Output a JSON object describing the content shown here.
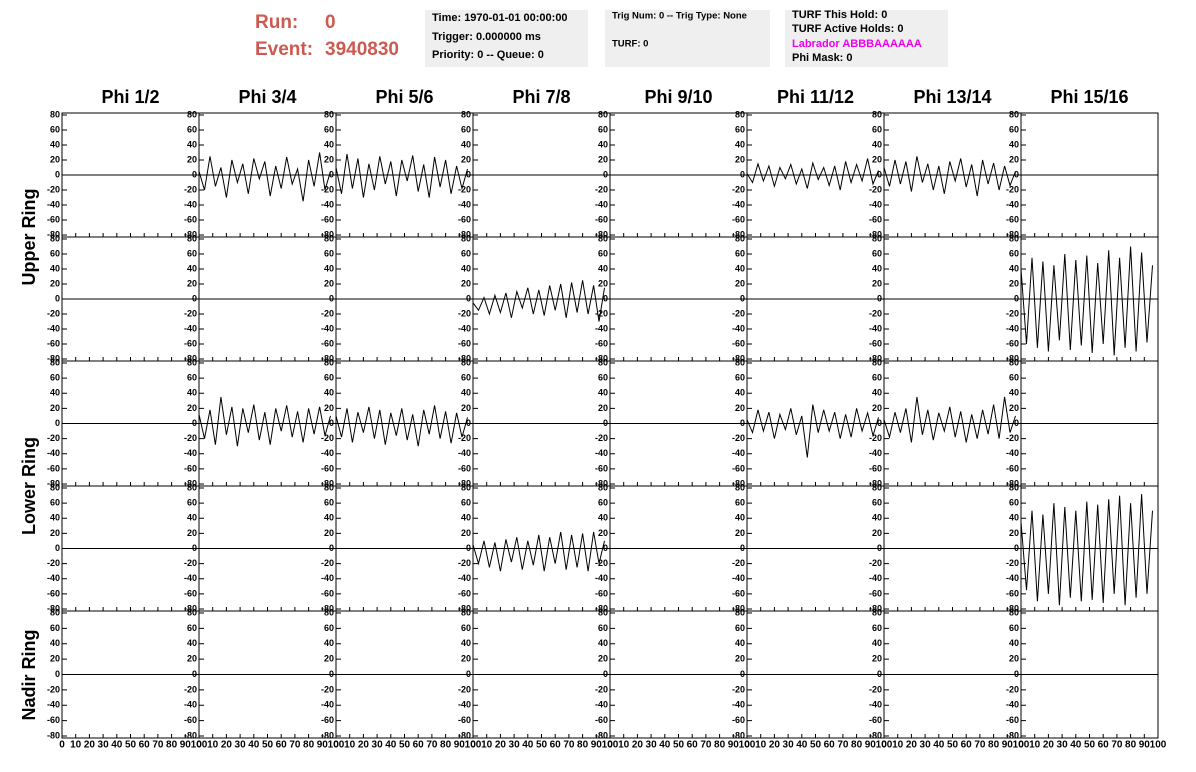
{
  "header": {
    "run_label": "Run:",
    "run": "0",
    "event_label": "Event:",
    "event": "3940830"
  },
  "info_boxes": [
    [
      "Time: 1970-01-01 00:00:00",
      "Trigger: 0.000000 ms",
      "Priority: 0 -- Queue: 0"
    ],
    [
      "Trig Num: 0 -- Trig Type: None",
      "TURF: 0"
    ],
    [
      "TURF This Hold: 0",
      "TURF Active Holds: 0",
      "Labrador ABBBAAAAAA",
      "Phi Mask: 0"
    ]
  ],
  "columns": [
    "Phi 1/2",
    "Phi 3/4",
    "Phi 5/6",
    "Phi 7/8",
    "Phi 9/10",
    "Phi 11/12",
    "Phi 13/14",
    "Phi 15/16"
  ],
  "rings": [
    "Upper Ring",
    "Lower Ring",
    "Nadir Ring"
  ],
  "chart_data": {
    "type": "line",
    "color": "#000000",
    "xlim": [
      0,
      100
    ],
    "ylim": [
      -80,
      80
    ],
    "xticks": [
      0,
      10,
      20,
      30,
      40,
      50,
      60,
      70,
      80,
      90,
      100
    ],
    "yticks": [
      -80,
      -60,
      -40,
      -20,
      0,
      20,
      40,
      60,
      80
    ],
    "x": [
      0,
      4,
      8,
      12,
      16,
      20,
      24,
      28,
      32,
      36,
      40,
      44,
      48,
      52,
      56,
      60,
      64,
      68,
      72,
      76,
      80,
      84,
      88,
      92,
      96
    ],
    "rows": [
      [
        null,
        [
          5,
          -20,
          25,
          -15,
          10,
          -30,
          20,
          -10,
          15,
          -25,
          22,
          -5,
          18,
          -28,
          12,
          -18,
          24,
          -12,
          8,
          -35,
          20,
          -15,
          30,
          -20,
          5
        ],
        [
          10,
          -25,
          28,
          -18,
          22,
          -30,
          15,
          -20,
          25,
          -12,
          18,
          -28,
          20,
          -8,
          26,
          -22,
          14,
          -30,
          24,
          -16,
          20,
          -25,
          12,
          -18,
          8
        ],
        null,
        null,
        [
          2,
          -10,
          15,
          -8,
          12,
          -15,
          10,
          -5,
          14,
          -12,
          8,
          -18,
          16,
          -6,
          10,
          -14,
          12,
          -20,
          18,
          -10,
          14,
          -8,
          22,
          -12,
          6
        ],
        [
          10,
          -15,
          20,
          -12,
          18,
          -22,
          25,
          -10,
          15,
          -20,
          12,
          -25,
          18,
          -8,
          22,
          -16,
          14,
          -28,
          20,
          -12,
          16,
          -20,
          12,
          -14,
          5
        ],
        null
      ],
      [
        null,
        null,
        null,
        [
          -5,
          -15,
          2,
          -20,
          5,
          -18,
          8,
          -25,
          10,
          -12,
          15,
          -20,
          12,
          -22,
          18,
          -15,
          20,
          -25,
          22,
          -18,
          25,
          -20,
          18,
          -30,
          15
        ],
        null,
        null,
        null,
        [
          40,
          -60,
          55,
          -65,
          50,
          -70,
          45,
          -55,
          60,
          -68,
          52,
          -62,
          58,
          -72,
          48,
          -60,
          65,
          -75,
          55,
          -65,
          70,
          -70,
          62,
          -58,
          45
        ]
      ],
      [
        null,
        [
          12,
          -20,
          18,
          -28,
          35,
          -15,
          22,
          -30,
          20,
          -12,
          25,
          -22,
          15,
          -28,
          20,
          -10,
          24,
          -18,
          16,
          -25,
          20,
          -14,
          22,
          -16,
          10
        ],
        [
          10,
          -18,
          20,
          -25,
          15,
          -12,
          22,
          -20,
          18,
          -28,
          14,
          -16,
          20,
          -22,
          12,
          -30,
          18,
          -14,
          24,
          -20,
          16,
          -26,
          14,
          -18,
          8
        ],
        null,
        null,
        [
          5,
          -12,
          18,
          -10,
          15,
          -20,
          12,
          -8,
          20,
          -15,
          10,
          -45,
          25,
          -12,
          18,
          -10,
          15,
          -20,
          12,
          -18,
          20,
          -10,
          14,
          -16,
          8
        ],
        [
          5,
          -18,
          15,
          -12,
          20,
          -25,
          35,
          -15,
          18,
          -22,
          14,
          -10,
          22,
          -18,
          16,
          -25,
          12,
          -20,
          18,
          -14,
          25,
          -20,
          35,
          -12,
          10
        ],
        null
      ],
      [
        null,
        null,
        null,
        [
          5,
          -20,
          10,
          -25,
          8,
          -30,
          12,
          -18,
          15,
          -28,
          10,
          -22,
          18,
          -30,
          15,
          -20,
          22,
          -28,
          18,
          -25,
          20,
          -30,
          22,
          -20,
          10
        ],
        null,
        null,
        null,
        [
          35,
          -55,
          50,
          -70,
          45,
          -60,
          60,
          -75,
          55,
          -65,
          50,
          -70,
          62,
          -68,
          58,
          -72,
          65,
          -60,
          70,
          -75,
          60,
          -65,
          72,
          -60,
          50
        ]
      ],
      [
        null,
        null,
        null,
        null,
        null,
        null,
        null,
        null
      ]
    ]
  }
}
